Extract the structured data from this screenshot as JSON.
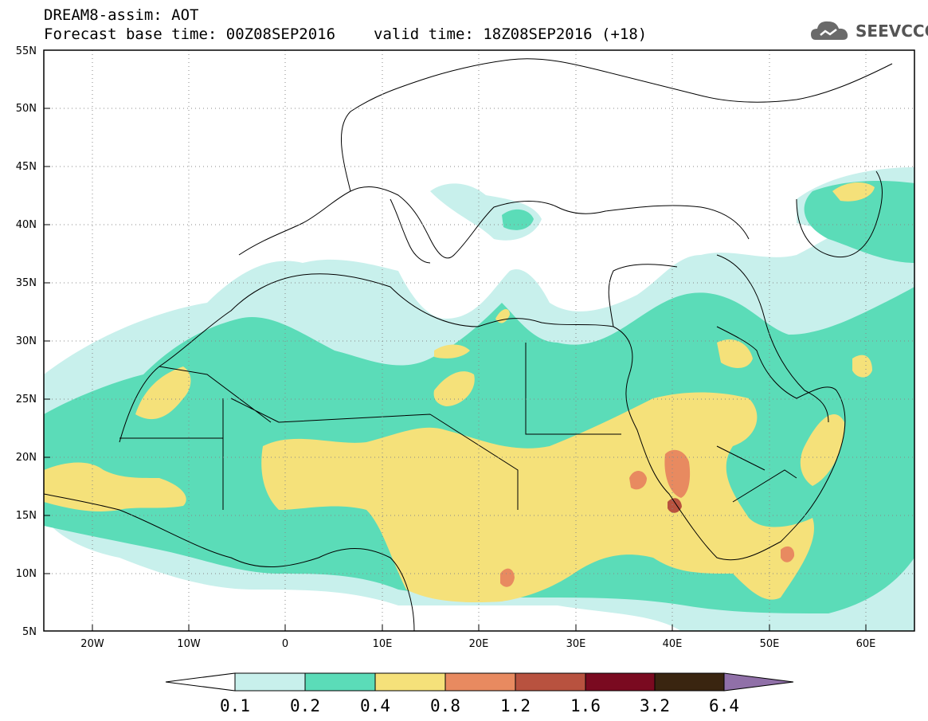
{
  "header": {
    "model_title": "DREAM8-assim: AOT",
    "forecast_base": "Forecast base time: 00Z08SEP2016",
    "valid_time": "valid time: 18Z08SEP2016 (+18)"
  },
  "logo": {
    "text": "SEEVCCC",
    "icon": "cloud-icon"
  },
  "map": {
    "region": "North Africa / Middle East / Europe",
    "lon_range": [
      -25,
      65
    ],
    "lat_range": [
      5,
      55
    ],
    "lat_ticks": [
      "5N",
      "10N",
      "15N",
      "20N",
      "25N",
      "30N",
      "35N",
      "40N",
      "45N",
      "50N",
      "55N"
    ],
    "lon_ticks": [
      "20W",
      "10W",
      "0",
      "10E",
      "20E",
      "30E",
      "40E",
      "50E",
      "60E"
    ],
    "grid": "dotted"
  },
  "colorbar": {
    "labels": [
      "0.1",
      "0.2",
      "0.4",
      "0.8",
      "1.2",
      "1.6",
      "3.2",
      "6.4"
    ],
    "colors": [
      "#c8f0ec",
      "#5bdcb8",
      "#f5e17a",
      "#e88a60",
      "#b8523f",
      "#7a0a20",
      "#3a2510",
      "#9070a8"
    ],
    "under_color": "#ffffff"
  }
}
